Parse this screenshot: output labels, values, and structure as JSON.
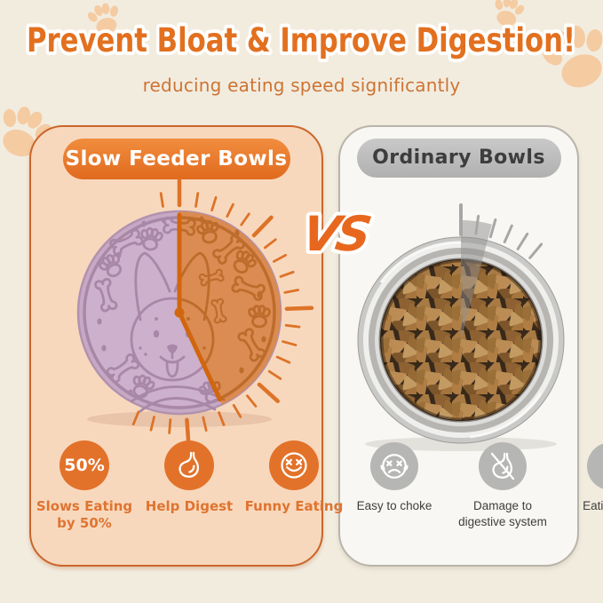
{
  "title": "Prevent Bloat & Improve Digestion!",
  "subtitle": "reducing eating speed significantly",
  "vs": "VS",
  "left_panel": {
    "header": "Slow Feeder Bowls",
    "badge_value": "50%",
    "features": [
      {
        "icon": "badge-50-percent",
        "label": "Slows Eating by 50%"
      },
      {
        "icon": "stomach-icon",
        "label": "Help Digest"
      },
      {
        "icon": "laughing-face-icon",
        "label": "Funny Eating"
      }
    ]
  },
  "right_panel": {
    "header": "Ordinary Bowls",
    "features": [
      {
        "icon": "choking-face-icon",
        "label": "Easy to choke"
      },
      {
        "icon": "stomach-slash-icon",
        "label": "Damage to digestive system"
      },
      {
        "icon": "lightning-icon",
        "label": "Eating fast"
      }
    ]
  },
  "colors": {
    "background": "#f2ecdf",
    "accent_orange": "#e2701f",
    "panel_left_bg": "#f8d8bd",
    "panel_left_border": "#c9662a",
    "panel_right_bg": "#f8f7f3",
    "pill_gray": "#bdbdbd",
    "bowl_lilac": "#c7a9c5",
    "bowl_orange_overlay": "#dc8948",
    "tick_orange": "#dd7328",
    "tick_gray": "#a7a7a7",
    "kibble_brown": "#a87a44",
    "label_orange": "#df7430",
    "label_gray": "#3e3e3e"
  }
}
